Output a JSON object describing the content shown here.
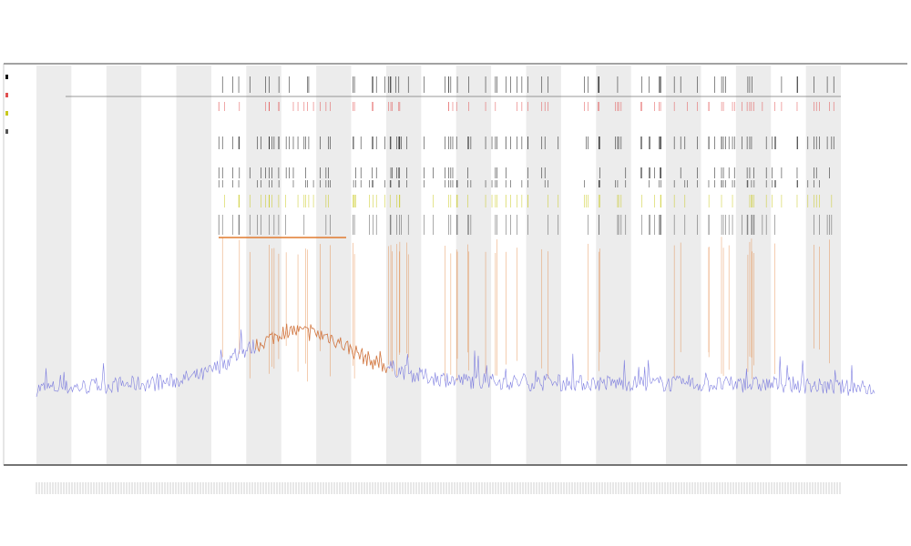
{
  "chart_data": {
    "type": "line",
    "title": "",
    "subtitle": "",
    "xlabel": "",
    "ylabel": "",
    "grid": false,
    "legend": {
      "position": "top-left",
      "entries": [
        {
          "swatch_color": "#111111"
        },
        {
          "swatch_color": "#e05050"
        },
        {
          "swatch_color": "#c8c81e"
        },
        {
          "swatch_color": "#555555"
        }
      ]
    },
    "shaded_bands": 12,
    "colors": {
      "signal": "#6b6bdc",
      "highlight": "#e07a2e",
      "band_fill": "#ececec",
      "axis": "#333333",
      "marker_red": "#e05050",
      "marker_yellow": "#c8c81e",
      "marker_black": "#111111"
    },
    "series": [
      {
        "baseline_profile": [
          [
            0,
            0.02
          ],
          [
            0.05,
            0.03
          ],
          [
            0.1,
            0.05
          ],
          [
            0.15,
            0.06
          ],
          [
            0.2,
            0.12
          ],
          [
            0.25,
            0.3
          ],
          [
            0.3,
            0.45
          ],
          [
            0.35,
            0.4
          ],
          [
            0.4,
            0.22
          ],
          [
            0.45,
            0.12
          ],
          [
            0.5,
            0.08
          ],
          [
            0.6,
            0.06
          ],
          [
            0.7,
            0.06
          ],
          [
            0.8,
            0.05
          ],
          [
            0.9,
            0.05
          ],
          [
            0.95,
            0.03
          ],
          [
            1.0,
            0.02
          ]
        ]
      },
      {
        "event_count": 140
      }
    ]
  }
}
